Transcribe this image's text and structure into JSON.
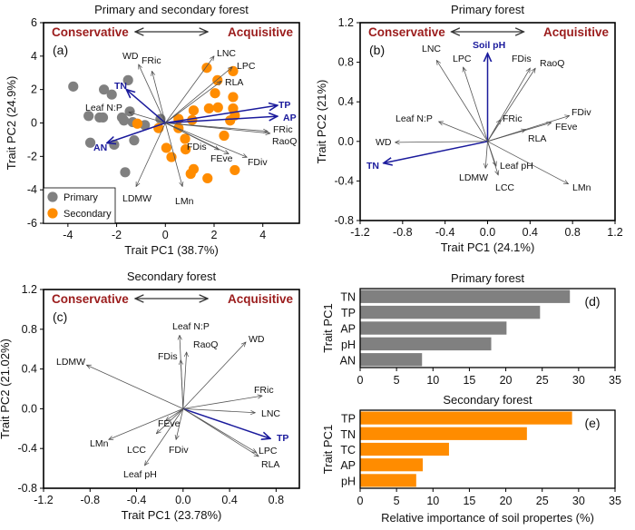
{
  "chart_data": [
    {
      "type": "scatter",
      "panel_label": "(a)",
      "title": "Primary and secondary forest",
      "xlabel": "Trait PC1 (38.7%)",
      "ylabel": "Trait PC2 (24.9%)",
      "xlim": [
        -5,
        5.5
      ],
      "ylim": [
        -6,
        6
      ],
      "xticks": [
        -4,
        -2,
        0,
        2,
        4
      ],
      "yticks": [
        -6,
        -4,
        -2,
        0,
        2,
        4,
        6
      ],
      "annotation": {
        "left": "Conservative",
        "right": "Acquisitive"
      },
      "legend": {
        "placement": "bottom-left"
      },
      "series": [
        {
          "name": "Primary",
          "color": "#808080",
          "points": [
            [
              -3.78,
              2.18
            ],
            [
              -2.52,
              2.0
            ],
            [
              -2.2,
              1.7
            ],
            [
              -1.53,
              2.56
            ],
            [
              -3.15,
              0.42
            ],
            [
              -2.7,
              0.33
            ],
            [
              -2.56,
              0.33
            ],
            [
              -1.78,
              0.33
            ],
            [
              -1.46,
              0.69
            ],
            [
              -1.7,
              0.15
            ],
            [
              -1.34,
              0.05
            ],
            [
              -0.84,
              -0.13
            ],
            [
              -0.2,
              0.24
            ],
            [
              -3.08,
              -1.18
            ],
            [
              -2.1,
              -1.3
            ],
            [
              -1.28,
              -1.04
            ],
            [
              -1.65,
              -2.95
            ]
          ]
        },
        {
          "name": "Secondary",
          "color": "#ff8c00",
          "points": [
            [
              1.7,
              3.3
            ],
            [
              2.78,
              3.1
            ],
            [
              2.14,
              2.56
            ],
            [
              2.04,
              1.78
            ],
            [
              2.78,
              1.55
            ],
            [
              1.16,
              0.75
            ],
            [
              1.79,
              0.87
            ],
            [
              2.16,
              0.93
            ],
            [
              2.78,
              0.87
            ],
            [
              2.85,
              0.45
            ],
            [
              2.66,
              0.15
            ],
            [
              1.1,
              0.18
            ],
            [
              0.54,
              0.24
            ],
            [
              -1.15,
              -0.04
            ],
            [
              -0.28,
              -0.31
            ],
            [
              0.54,
              -0.31
            ],
            [
              2.41,
              -0.76
            ],
            [
              0.81,
              -0.95
            ],
            [
              0.83,
              -1.58
            ],
            [
              0.04,
              -1.49
            ],
            [
              0.25,
              -2.04
            ],
            [
              1.16,
              -2.76
            ],
            [
              1.04,
              -3.04
            ],
            [
              1.73,
              -3.31
            ],
            [
              2.85,
              -2.82
            ]
          ]
        }
      ],
      "arrows": [
        {
          "label": "WD",
          "x": -1.1,
          "y": 3.5,
          "soil": false
        },
        {
          "label": "FRic",
          "x": -0.55,
          "y": 3.1,
          "soil": false
        },
        {
          "label": "LNC",
          "x": 2.0,
          "y": 4.0,
          "soil": false
        },
        {
          "label": "LPC",
          "x": 2.75,
          "y": 3.35,
          "soil": false
        },
        {
          "label": "RLA",
          "x": 2.3,
          "y": 2.5,
          "soil": false
        },
        {
          "label": "TP",
          "x": 4.6,
          "y": 1.05,
          "soil": true
        },
        {
          "label": "AP",
          "x": 4.6,
          "y": 0.4,
          "soil": true
        },
        {
          "label": "FRic",
          "x": 4.2,
          "y": -0.5,
          "soil": false
        },
        {
          "label": "RaoQ",
          "x": 4.3,
          "y": -0.62,
          "soil": false
        },
        {
          "label": "FDis",
          "x": 2.2,
          "y": -1.6,
          "soil": false
        },
        {
          "label": "FEve",
          "x": 2.6,
          "y": -1.85,
          "soil": false
        },
        {
          "label": "FDiv",
          "x": 3.35,
          "y": -2.05,
          "soil": false
        },
        {
          "label": "LDMW",
          "x": -1.2,
          "y": -3.8,
          "soil": false
        },
        {
          "label": "LMn",
          "x": 0.7,
          "y": -3.8,
          "soil": false
        },
        {
          "label": "TN",
          "x": -1.6,
          "y": 2.0,
          "soil": true
        },
        {
          "label": "AN",
          "x": -2.4,
          "y": -1.2,
          "soil": true
        },
        {
          "label": "Leaf N:P",
          "x": -1.5,
          "y": 0.65,
          "soil": false
        }
      ]
    },
    {
      "type": "scatter",
      "panel_label": "(b)",
      "title": "Primary forest",
      "xlabel": "Trait PC1 (24.1%)",
      "ylabel": "Trait PC2 (21%)",
      "xlim": [
        -1.2,
        1.2
      ],
      "ylim": [
        -0.8,
        1.2
      ],
      "xticks": [
        -1.2,
        -0.8,
        -0.4,
        0.0,
        0.4,
        0.8,
        1.2
      ],
      "yticks": [
        -0.8,
        -0.4,
        0.0,
        0.4,
        0.8,
        1.2
      ],
      "annotation": {
        "left": "Conservative",
        "right": "Acquisitive"
      },
      "arrows": [
        {
          "label": "Soil pH",
          "x": 0.0,
          "y": 0.89,
          "soil": true
        },
        {
          "label": "LNC",
          "x": -0.48,
          "y": 0.82,
          "soil": false
        },
        {
          "label": "LPC",
          "x": -0.23,
          "y": 0.75,
          "soil": false
        },
        {
          "label": "FDis",
          "x": 0.4,
          "y": 0.74,
          "soil": false
        },
        {
          "label": "RaoQ",
          "x": 0.45,
          "y": 0.74,
          "soil": false
        },
        {
          "label": "FRic",
          "x": 0.12,
          "y": 0.22,
          "soil": false
        },
        {
          "label": "FDiv",
          "x": 0.77,
          "y": 0.26,
          "soil": false
        },
        {
          "label": "FEve",
          "x": 0.6,
          "y": 0.19,
          "soil": false
        },
        {
          "label": "RLA",
          "x": 0.36,
          "y": 0.12,
          "soil": false
        },
        {
          "label": "Leaf N:P",
          "x": -0.46,
          "y": 0.2,
          "soil": false
        },
        {
          "label": "WD",
          "x": -0.87,
          "y": -0.01,
          "soil": false
        },
        {
          "label": "TN",
          "x": -0.98,
          "y": -0.22,
          "soil": true
        },
        {
          "label": "LDMW",
          "x": -0.02,
          "y": -0.27,
          "soil": false
        },
        {
          "label": "Leaf pH",
          "x": 0.08,
          "y": -0.25,
          "soil": false
        },
        {
          "label": "LCC",
          "x": 0.1,
          "y": -0.34,
          "soil": false
        },
        {
          "label": "LMn",
          "x": 0.76,
          "y": -0.43,
          "soil": false
        }
      ]
    },
    {
      "type": "scatter",
      "panel_label": "(c)",
      "title": "Secondary forest",
      "xlabel": "Trait PC1 (23.78%)",
      "ylabel": "Trait PC2 (21.02%)",
      "xlim": [
        -1.2,
        1.0
      ],
      "ylim": [
        -0.8,
        1.2
      ],
      "xticks": [
        -1.2,
        -0.8,
        -0.4,
        0.0,
        0.4,
        0.8
      ],
      "yticks": [
        -0.8,
        -0.4,
        0.0,
        0.4,
        0.8,
        1.2
      ],
      "annotation": {
        "left": "Conservative",
        "right": "Acquisitive"
      },
      "arrows": [
        {
          "label": "Leaf N:P",
          "x": -0.03,
          "y": 0.74,
          "soil": false
        },
        {
          "label": "RaoQ",
          "x": 0.03,
          "y": 0.57,
          "soil": false
        },
        {
          "label": "FDis",
          "x": -0.02,
          "y": 0.49,
          "soil": false
        },
        {
          "label": "WD",
          "x": 0.54,
          "y": 0.67,
          "soil": false
        },
        {
          "label": "LDMW",
          "x": -0.83,
          "y": 0.44,
          "soil": false
        },
        {
          "label": "FRic",
          "x": 0.68,
          "y": 0.13,
          "soil": false
        },
        {
          "label": "LNC",
          "x": 0.62,
          "y": -0.04,
          "soil": false
        },
        {
          "label": "TP",
          "x": 0.75,
          "y": -0.3,
          "soil": true
        },
        {
          "label": "LPC",
          "x": 0.63,
          "y": -0.44,
          "soil": false
        },
        {
          "label": "RLA",
          "x": 0.65,
          "y": -0.48,
          "soil": false
        },
        {
          "label": "LMn",
          "x": -0.64,
          "y": -0.31,
          "soil": false
        },
        {
          "label": "LCC",
          "x": -0.23,
          "y": -0.25,
          "soil": false
        },
        {
          "label": "FEve",
          "x": -0.15,
          "y": -0.12,
          "soil": false
        },
        {
          "label": "FDiv",
          "x": -0.06,
          "y": -0.31,
          "soil": false
        },
        {
          "label": "Leaf pH",
          "x": -0.33,
          "y": -0.57,
          "soil": false
        }
      ]
    },
    {
      "type": "bar",
      "panel_label": "(d)",
      "title": "Primary forest",
      "ylabel": "Trait PC1",
      "xlabel": "",
      "categories": [
        "TN",
        "TP",
        "AP",
        "pH",
        "AN"
      ],
      "values": [
        28.8,
        24.7,
        20.1,
        18.0,
        8.5
      ],
      "xlim": [
        0,
        35
      ],
      "xticks": [
        0,
        5,
        10,
        15,
        20,
        25,
        30,
        35
      ],
      "color": "#808080"
    },
    {
      "type": "bar",
      "panel_label": "(e)",
      "title": "Secondary forest",
      "ylabel": "Trait PC1",
      "xlabel": "Relative importance of soil propertes (%)",
      "categories": [
        "TP",
        "TN",
        "TC",
        "AP",
        "pH"
      ],
      "values": [
        29.1,
        22.9,
        12.2,
        8.6,
        7.7
      ],
      "xlim": [
        0,
        35
      ],
      "xticks": [
        0,
        5,
        10,
        15,
        20,
        25,
        30,
        35
      ],
      "color": "#ff8c00"
    }
  ]
}
